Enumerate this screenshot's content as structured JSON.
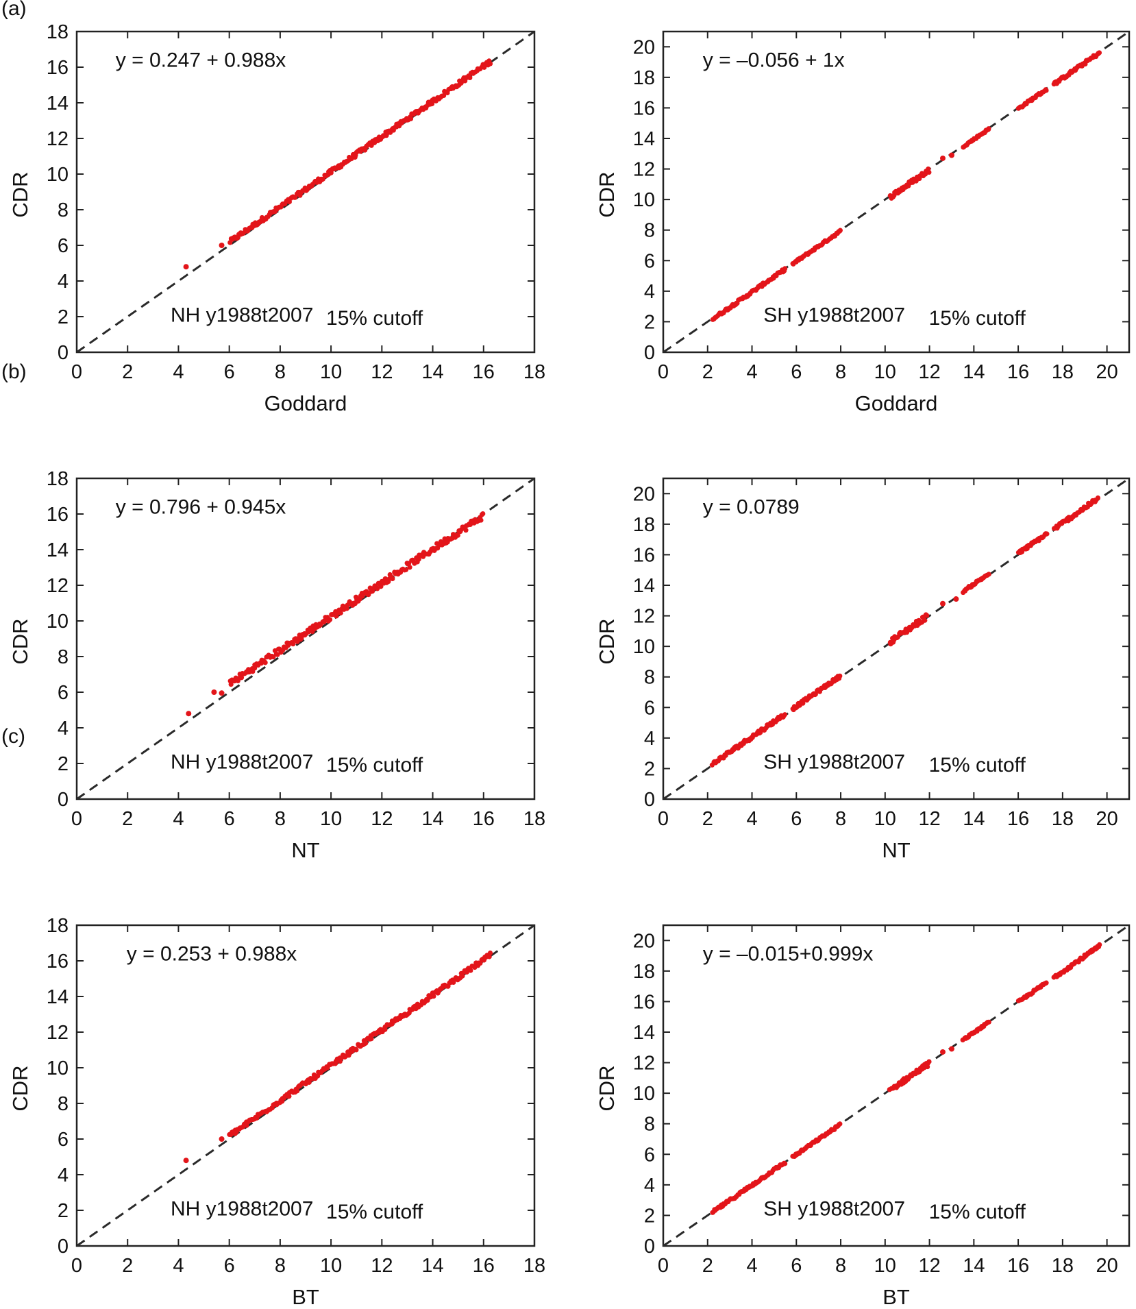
{
  "panel_labels": [
    "(a)",
    "(b)",
    "(c)"
  ],
  "chart_data": [
    {
      "id": "a-nh",
      "type": "scatter",
      "panel": "(a)",
      "xlabel": "Goddard",
      "ylabel": "CDR",
      "xlim": [
        0,
        18
      ],
      "ylim": [
        0,
        18
      ],
      "xticks": [
        0,
        2,
        4,
        6,
        8,
        10,
        12,
        14,
        16,
        18
      ],
      "yticks": [
        0,
        2,
        4,
        6,
        8,
        10,
        12,
        14,
        16,
        18
      ],
      "equation": "y = 0.247 + 0.988x",
      "region_label": "NH y1988t2007",
      "cutoff_label": "15% cutoff",
      "reference_line": {
        "from": [
          0,
          0
        ],
        "to": [
          18,
          18
        ]
      },
      "fit": {
        "intercept": 0.247,
        "slope": 0.988
      },
      "outliers": [
        [
          4.3,
          4.8
        ],
        [
          5.7,
          6.0
        ]
      ],
      "segments": [
        [
          6.0,
          16.3,
          0.25
        ]
      ]
    },
    {
      "id": "a-sh",
      "type": "scatter",
      "panel": "(a)",
      "xlabel": "Goddard",
      "ylabel": "CDR",
      "xlim": [
        0,
        21
      ],
      "ylim": [
        0,
        21
      ],
      "xticks": [
        0,
        2,
        4,
        6,
        8,
        10,
        12,
        14,
        16,
        18,
        20
      ],
      "yticks": [
        0,
        2,
        4,
        6,
        8,
        10,
        12,
        14,
        16,
        18,
        20
      ],
      "equation": "y = –0.056 + 1x",
      "region_label": "SH y1988t2007",
      "cutoff_label": "15% cutoff",
      "reference_line": {
        "from": [
          0,
          0
        ],
        "to": [
          21,
          21
        ]
      },
      "fit": {
        "intercept": -0.056,
        "slope": 1.0
      },
      "outliers": [
        [
          12.6,
          12.7
        ],
        [
          13.0,
          12.9
        ]
      ],
      "segments": [
        [
          2.2,
          5.5,
          0.18
        ],
        [
          5.8,
          8.0,
          0.15
        ],
        [
          10.2,
          12.0,
          0.3
        ],
        [
          13.5,
          14.7,
          0.12
        ],
        [
          16.0,
          17.3,
          0.15
        ],
        [
          17.6,
          19.7,
          0.2
        ]
      ]
    },
    {
      "id": "b-nh",
      "type": "scatter",
      "panel": "(b)",
      "xlabel": "NT",
      "ylabel": "CDR",
      "xlim": [
        0,
        18
      ],
      "ylim": [
        0,
        18
      ],
      "xticks": [
        0,
        2,
        4,
        6,
        8,
        10,
        12,
        14,
        16,
        18
      ],
      "yticks": [
        0,
        2,
        4,
        6,
        8,
        10,
        12,
        14,
        16,
        18
      ],
      "equation": "y = 0.796 + 0.945x",
      "region_label": "NH y1988t2007",
      "cutoff_label": "15% cutoff",
      "reference_line": {
        "from": [
          0,
          0
        ],
        "to": [
          18,
          18
        ]
      },
      "fit": {
        "intercept": 0.796,
        "slope": 0.945
      },
      "outliers": [
        [
          4.4,
          4.8
        ],
        [
          5.4,
          6.0
        ],
        [
          5.7,
          5.95
        ]
      ],
      "segments": [
        [
          6.0,
          16.0,
          0.35
        ]
      ]
    },
    {
      "id": "b-sh",
      "type": "scatter",
      "panel": "(b)",
      "xlabel": "NT",
      "ylabel": "CDR",
      "xlim": [
        0,
        21
      ],
      "ylim": [
        0,
        21
      ],
      "xticks": [
        0,
        2,
        4,
        6,
        8,
        10,
        12,
        14,
        16,
        18,
        20
      ],
      "yticks": [
        0,
        2,
        4,
        6,
        8,
        10,
        12,
        14,
        16,
        18,
        20
      ],
      "equation": "y = 0.0789",
      "region_label": "SH y1988t2007",
      "cutoff_label": "15% cutoff",
      "reference_line": {
        "from": [
          0,
          0
        ],
        "to": [
          21,
          21
        ]
      },
      "fit": {
        "intercept": 0.0789,
        "slope": 1.0
      },
      "outliers": [
        [
          12.6,
          12.8
        ],
        [
          13.2,
          13.1
        ]
      ],
      "segments": [
        [
          2.2,
          5.5,
          0.25
        ],
        [
          5.8,
          8.0,
          0.2
        ],
        [
          10.2,
          11.9,
          0.35
        ],
        [
          13.5,
          14.7,
          0.15
        ],
        [
          16.0,
          17.3,
          0.2
        ],
        [
          17.6,
          19.6,
          0.25
        ]
      ]
    },
    {
      "id": "c-nh",
      "type": "scatter",
      "panel": "(c)",
      "xlabel": "BT",
      "ylabel": "CDR",
      "xlim": [
        0,
        18
      ],
      "ylim": [
        0,
        18
      ],
      "xticks": [
        0,
        2,
        4,
        6,
        8,
        10,
        12,
        14,
        16,
        18
      ],
      "yticks": [
        0,
        2,
        4,
        6,
        8,
        10,
        12,
        14,
        16,
        18
      ],
      "equation": "y = 0.253 + 0.988x",
      "region_label": "NH y1988t2007",
      "cutoff_label": "15% cutoff",
      "reference_line": {
        "from": [
          0,
          0
        ],
        "to": [
          18,
          18
        ]
      },
      "fit": {
        "intercept": 0.253,
        "slope": 0.988
      },
      "outliers": [
        [
          4.3,
          4.8
        ],
        [
          5.7,
          6.0
        ]
      ],
      "segments": [
        [
          6.0,
          16.3,
          0.25
        ]
      ]
    },
    {
      "id": "c-sh",
      "type": "scatter",
      "panel": "(c)",
      "xlabel": "BT",
      "ylabel": "CDR",
      "xlim": [
        0,
        21
      ],
      "ylim": [
        0,
        21
      ],
      "xticks": [
        0,
        2,
        4,
        6,
        8,
        10,
        12,
        14,
        16,
        18,
        20
      ],
      "yticks": [
        0,
        2,
        4,
        6,
        8,
        10,
        12,
        14,
        16,
        18,
        20
      ],
      "equation": "y = –0.015+0.999x",
      "region_label": "SH y1988t2007",
      "cutoff_label": "15% cutoff",
      "reference_line": {
        "from": [
          0,
          0
        ],
        "to": [
          21,
          21
        ]
      },
      "fit": {
        "intercept": -0.015,
        "slope": 0.999
      },
      "outliers": [
        [
          12.6,
          12.7
        ],
        [
          13.0,
          12.9
        ]
      ],
      "segments": [
        [
          2.2,
          5.5,
          0.18
        ],
        [
          5.8,
          8.0,
          0.15
        ],
        [
          10.2,
          12.0,
          0.3
        ],
        [
          13.5,
          14.7,
          0.12
        ],
        [
          16.0,
          17.3,
          0.15
        ],
        [
          17.6,
          19.7,
          0.2
        ]
      ]
    }
  ],
  "colors": {
    "points": "#e3151a",
    "reference_line": "#2a2a2a",
    "frame": "#222222",
    "text": "#111111"
  }
}
